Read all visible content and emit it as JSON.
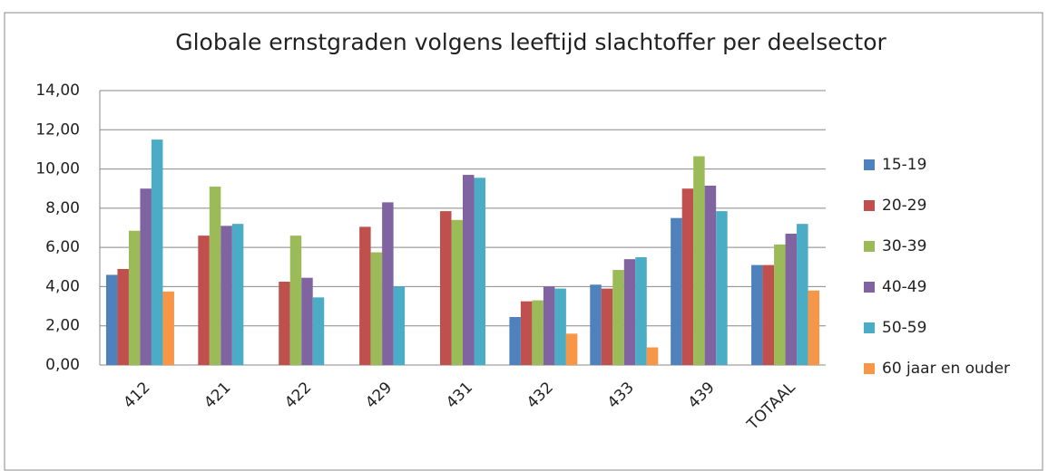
{
  "chart_data": {
    "type": "bar",
    "title": "Globale ernstgraden volgens leeftijd slachtoffer per deelsector",
    "categories": [
      "412",
      "421",
      "422",
      "429",
      "431",
      "432",
      "433",
      "439",
      "TOTAAL"
    ],
    "series": [
      {
        "name": "15-19",
        "color": "#4f81bd",
        "values": [
          4.6,
          null,
          null,
          null,
          null,
          2.45,
          4.1,
          7.5,
          5.1
        ]
      },
      {
        "name": "20-29",
        "color": "#c0504d",
        "values": [
          4.9,
          6.6,
          4.25,
          7.05,
          7.85,
          3.25,
          3.9,
          9.0,
          5.1
        ]
      },
      {
        "name": "30-39",
        "color": "#9bbb59",
        "values": [
          6.85,
          9.1,
          6.6,
          5.75,
          7.4,
          3.3,
          4.85,
          10.65,
          6.15
        ]
      },
      {
        "name": "40-49",
        "color": "#8064a2",
        "values": [
          9.0,
          7.1,
          4.45,
          8.3,
          9.7,
          4.0,
          5.4,
          9.15,
          6.7
        ]
      },
      {
        "name": "50-59",
        "color": "#4bacc6",
        "values": [
          11.5,
          7.2,
          3.45,
          4.0,
          9.55,
          3.9,
          5.5,
          7.85,
          7.2
        ]
      },
      {
        "name": "60 jaar en ouder",
        "color": "#f79646",
        "values": [
          3.75,
          null,
          null,
          null,
          null,
          1.6,
          0.9,
          null,
          3.8
        ]
      }
    ],
    "ylim": [
      0,
      14
    ],
    "yticks": [
      {
        "value": 0,
        "label": "0,00"
      },
      {
        "value": 2,
        "label": "2,00"
      },
      {
        "value": 4,
        "label": "4,00"
      },
      {
        "value": 6,
        "label": "6,00"
      },
      {
        "value": 8,
        "label": "8,00"
      },
      {
        "value": 10,
        "label": "10,00"
      },
      {
        "value": 12,
        "label": "12,00"
      },
      {
        "value": 14,
        "label": "14,00"
      }
    ],
    "grid": true,
    "legend": "right"
  }
}
